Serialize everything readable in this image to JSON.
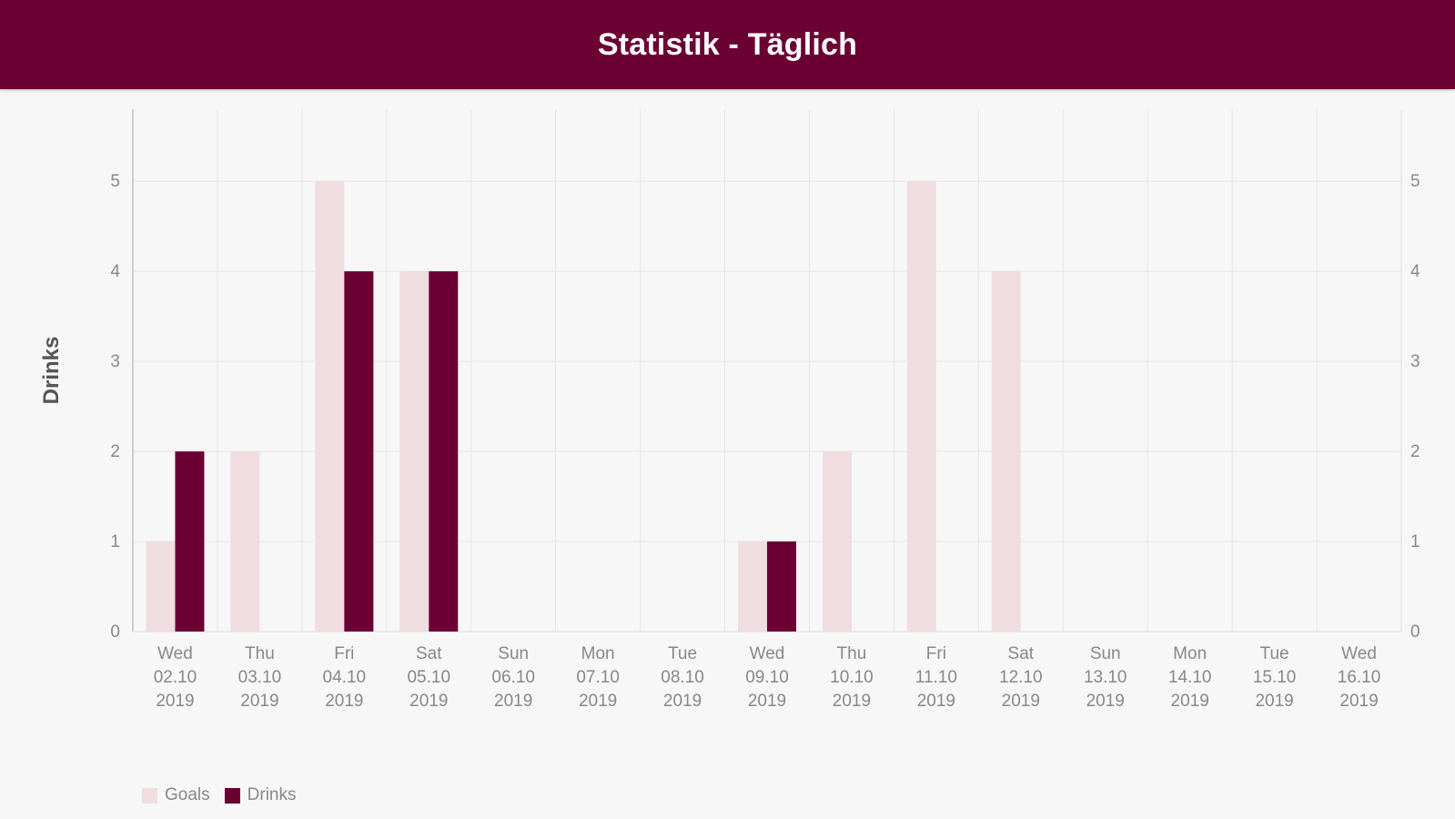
{
  "header": {
    "title": "Statistik - Täglich"
  },
  "colors": {
    "header_bg": "#6b0033",
    "goals": "#f0dde0",
    "drinks": "#6b0033",
    "grid": "#e6e6e6",
    "axis_text": "#888888"
  },
  "chart_data": {
    "type": "bar",
    "ylabel": "Drinks",
    "ylim": [
      0,
      5.8
    ],
    "yticks": [
      0,
      1,
      2,
      3,
      4,
      5
    ],
    "categories": [
      [
        "Wed",
        "02.10",
        "2019"
      ],
      [
        "Thu",
        "03.10",
        "2019"
      ],
      [
        "Fri",
        "04.10",
        "2019"
      ],
      [
        "Sat",
        "05.10",
        "2019"
      ],
      [
        "Sun",
        "06.10",
        "2019"
      ],
      [
        "Mon",
        "07.10",
        "2019"
      ],
      [
        "Tue",
        "08.10",
        "2019"
      ],
      [
        "Wed",
        "09.10",
        "2019"
      ],
      [
        "Thu",
        "10.10",
        "2019"
      ],
      [
        "Fri",
        "11.10",
        "2019"
      ],
      [
        "Sat",
        "12.10",
        "2019"
      ],
      [
        "Sun",
        "13.10",
        "2019"
      ],
      [
        "Mon",
        "14.10",
        "2019"
      ],
      [
        "Tue",
        "15.10",
        "2019"
      ],
      [
        "Wed",
        "16.10",
        "2019"
      ]
    ],
    "series": [
      {
        "name": "Goals",
        "color": "#f0dde0",
        "values": [
          1,
          2,
          5,
          4,
          0,
          0,
          0,
          1,
          2,
          5,
          4,
          0,
          0,
          0,
          0
        ]
      },
      {
        "name": "Drinks",
        "color": "#6b0033",
        "values": [
          2,
          0,
          4,
          4,
          0,
          0,
          0,
          1,
          0,
          0,
          0,
          0,
          0,
          0,
          0
        ]
      }
    ],
    "grid": true,
    "legend": "bottom-left",
    "secondary_y_axis": true
  }
}
